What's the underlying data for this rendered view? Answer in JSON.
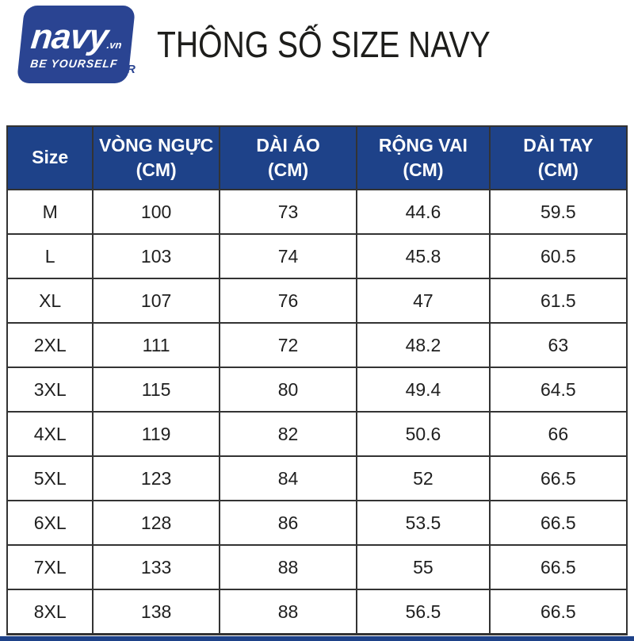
{
  "colors": {
    "navy": "#1e4289",
    "logo_navy": "#2a4492",
    "border": "#333333",
    "text": "#1f1f1f",
    "header_text": "#ffffff",
    "title_text": "#1d1d1b"
  },
  "logo": {
    "brand": "navy",
    "domain": ".vn",
    "tagline": "BE YOURSELF",
    "registered_mark": "R"
  },
  "header": {
    "title": "THÔNG SỐ SIZE NAVY"
  },
  "table": {
    "columns": [
      "Size",
      "VÒNG NGỰC\n(CM)",
      "DÀI ÁO\n(CM)",
      "RỘNG VAI\n(CM)",
      "DÀI TAY\n(CM)"
    ],
    "rows": [
      {
        "size": "M",
        "values": [
          100,
          73,
          44.6,
          59.5
        ]
      },
      {
        "size": "L",
        "values": [
          103,
          74,
          45.8,
          60.5
        ]
      },
      {
        "size": "XL",
        "values": [
          107,
          76,
          47,
          61.5
        ]
      },
      {
        "size": "2XL",
        "values": [
          111,
          72,
          48.2,
          63
        ]
      },
      {
        "size": "3XL",
        "values": [
          115,
          80,
          49.4,
          64.5
        ]
      },
      {
        "size": "4XL",
        "values": [
          119,
          82,
          50.6,
          66
        ]
      },
      {
        "size": "5XL",
        "values": [
          123,
          84,
          52,
          66.5
        ]
      },
      {
        "size": "6XL",
        "values": [
          128,
          86,
          53.5,
          66.5
        ]
      },
      {
        "size": "7XL",
        "values": [
          133,
          88,
          55,
          66.5
        ]
      },
      {
        "size": "8XL",
        "values": [
          138,
          88,
          56.5,
          66.5
        ]
      }
    ]
  }
}
